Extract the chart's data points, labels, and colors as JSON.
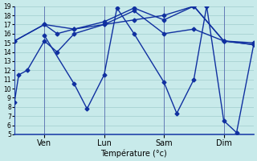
{
  "xlabel": "Température (°c)",
  "background_color": "#c8eaea",
  "grid_color": "#a0cccc",
  "line_color": "#1030a0",
  "marker": "D",
  "markersize": 2.5,
  "linewidth": 1.0,
  "ylim": [
    5,
    19
  ],
  "yticks": [
    5,
    6,
    7,
    8,
    9,
    10,
    11,
    12,
    13,
    14,
    15,
    16,
    17,
    18,
    19
  ],
  "xtick_labels": [
    "Ven",
    "Lun",
    "Sam",
    "Dim"
  ],
  "xtick_positions": [
    7,
    21,
    35,
    49
  ],
  "vline_positions": [
    7,
    21,
    35,
    49
  ],
  "xlim": [
    0,
    56
  ],
  "series": {
    "line1_x": [
      0,
      1,
      3,
      7,
      10,
      14,
      21,
      28,
      35,
      42,
      49,
      56
    ],
    "line1_y": [
      8.5,
      11.5,
      12.0,
      15.2,
      14.0,
      16.0,
      17.0,
      17.5,
      18.0,
      19.0,
      15.2,
      14.8
    ],
    "line2_x": [
      0,
      7,
      10,
      14,
      21,
      28,
      35,
      42,
      49,
      56
    ],
    "line2_y": [
      15.2,
      17.0,
      16.0,
      16.5,
      17.0,
      18.5,
      16.0,
      16.5,
      15.2,
      15.0
    ],
    "line3_x": [
      0,
      7,
      14,
      21,
      28,
      35,
      42,
      49,
      56
    ],
    "line3_y": [
      15.2,
      17.0,
      16.5,
      17.3,
      18.8,
      17.5,
      19.0,
      15.2,
      14.8
    ],
    "line4_x": [
      7,
      14,
      17,
      21,
      24,
      28,
      35,
      38,
      42,
      45,
      49,
      52,
      56
    ],
    "line4_y": [
      15.8,
      10.5,
      7.8,
      11.5,
      18.8,
      16.0,
      10.7,
      7.3,
      11.0,
      19.0,
      6.5,
      5.2,
      14.8
    ]
  }
}
